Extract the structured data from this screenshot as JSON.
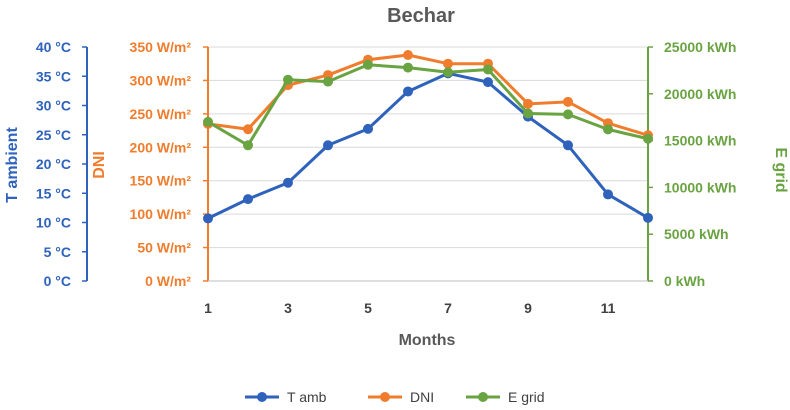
{
  "chart_data": {
    "type": "line",
    "title": "Bechar",
    "xlabel": "Months",
    "x": [
      1,
      2,
      3,
      4,
      5,
      6,
      7,
      8,
      9,
      10,
      11,
      12
    ],
    "x_tick_labels": [
      "1",
      "3",
      "5",
      "7",
      "9",
      "11"
    ],
    "x_tick_values": [
      1,
      3,
      5,
      7,
      9,
      11
    ],
    "series": [
      {
        "name": "T amb",
        "axis": "left",
        "color": "#2E62BB",
        "values": [
          10.7,
          14,
          16.8,
          23.2,
          26,
          32.4,
          35.5,
          34,
          28.1,
          23.2,
          14.8,
          10.8
        ]
      },
      {
        "name": "DNI",
        "axis": "left2",
        "color": "#F07D2D",
        "values": [
          235,
          227,
          293,
          308,
          331,
          338,
          325,
          325,
          265,
          268,
          236,
          218
        ]
      },
      {
        "name": "E grid",
        "axis": "right",
        "color": "#6AA342",
        "values": [
          17000,
          14500,
          21500,
          21300,
          23100,
          22800,
          22300,
          22600,
          17900,
          17800,
          16200,
          15200
        ]
      }
    ],
    "axes": {
      "left": {
        "label": "T ambient",
        "ylim": [
          0,
          40
        ],
        "tick_values": [
          0,
          5,
          10,
          15,
          20,
          25,
          30,
          35,
          40
        ],
        "tick_labels": [
          "0 °C",
          "5 °C",
          "10 °C",
          "15 °C",
          "20 °C",
          "25 °C",
          "30 °C",
          "35 °C",
          "40 °C"
        ],
        "color": "#2E62BB"
      },
      "left2": {
        "label": "DNI",
        "ylim": [
          0,
          350
        ],
        "tick_values": [
          0,
          50,
          100,
          150,
          200,
          250,
          300,
          350
        ],
        "tick_labels": [
          "0 W/m²",
          "50 W/m²",
          "100 W/m²",
          "150 W/m²",
          "200 W/m²",
          "250 W/m²",
          "300 W/m²",
          "350 W/m²"
        ],
        "color": "#F07D2D"
      },
      "right": {
        "label": "E grid",
        "ylim": [
          0,
          25000
        ],
        "tick_values": [
          0,
          5000,
          10000,
          15000,
          20000,
          25000
        ],
        "tick_labels": [
          "0 kWh",
          "5000 kWh",
          "10000 kWh",
          "15000 kWh",
          "20000 kWh",
          "25000 kWh"
        ],
        "color": "#6AA342"
      }
    },
    "grid": true,
    "legend_position": "bottom"
  }
}
